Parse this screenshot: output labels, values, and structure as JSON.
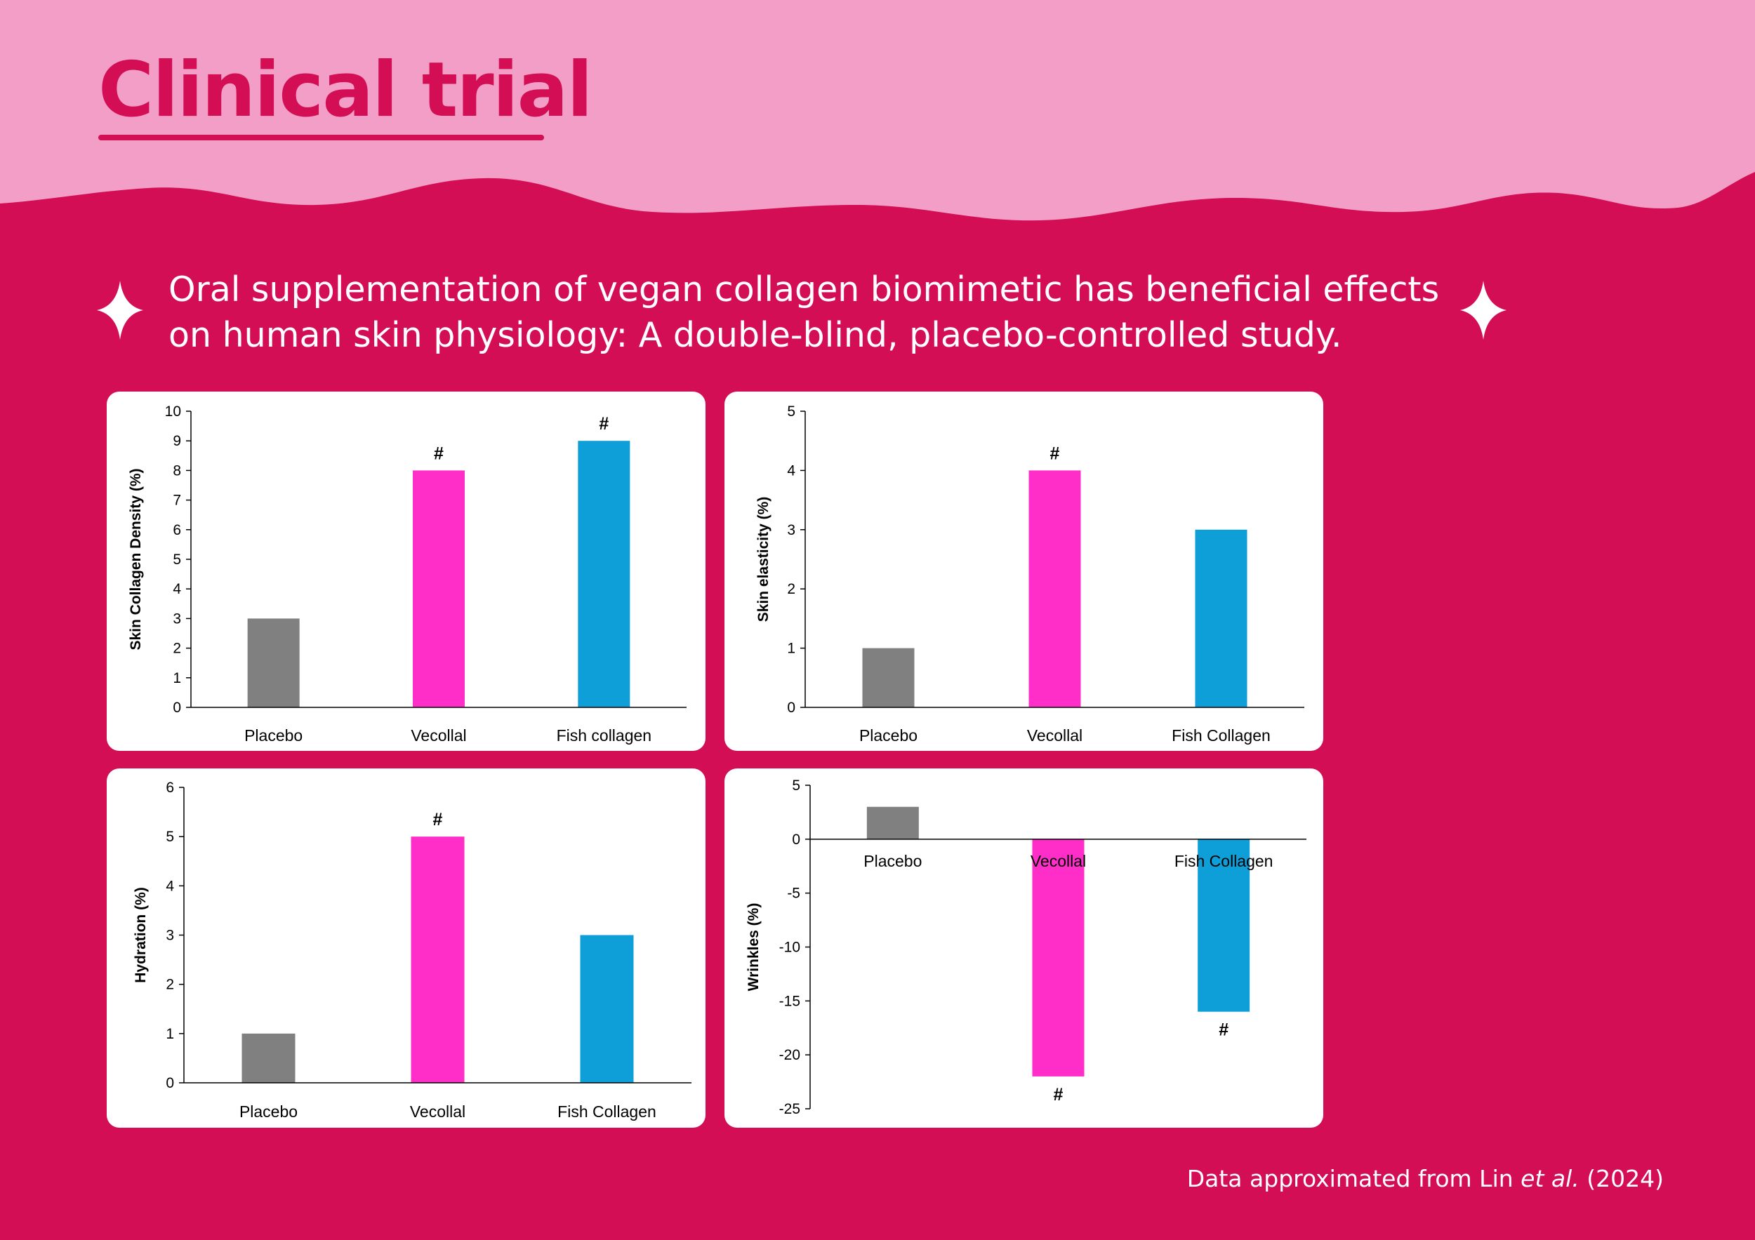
{
  "header": {
    "title": "Clinical trial"
  },
  "subtitle": {
    "line1": "Oral supplementation of vegan collagen biomimetic has beneficial effects",
    "line2": "on human skin physiology: A double-blind, placebo-controlled study."
  },
  "footnote": {
    "prefix": "Data approximated from Lin ",
    "italic": "et al.",
    "suffix": " (2024)"
  },
  "colors": {
    "background": "#d40e55",
    "header_band": "#f29ec6",
    "placebo": "#808080",
    "vecollal": "#ff2ec8",
    "fish_collagen": "#0f9fd8"
  },
  "chart_data": [
    {
      "id": "collagen",
      "type": "bar",
      "ylabel": "Skin Collagen Density (%)",
      "categories": [
        "Placebo",
        "Vecollal",
        "Fish collagen"
      ],
      "values": [
        3,
        8,
        9
      ],
      "significance": [
        "",
        "#",
        "#"
      ],
      "ylim": [
        0,
        10
      ],
      "yticks": [
        0,
        1,
        2,
        3,
        4,
        5,
        6,
        7,
        8,
        9,
        10
      ]
    },
    {
      "id": "elasticity",
      "type": "bar",
      "ylabel": "Skin elasticity (%)",
      "categories": [
        "Placebo",
        "Vecollal",
        "Fish Collagen"
      ],
      "values": [
        1,
        4,
        3
      ],
      "significance": [
        "",
        "#",
        ""
      ],
      "ylim": [
        0,
        5
      ],
      "yticks": [
        0,
        1,
        2,
        3,
        4,
        5
      ]
    },
    {
      "id": "hydration",
      "type": "bar",
      "ylabel": "Hydration (%)",
      "categories": [
        "Placebo",
        "Vecollal",
        "Fish Collagen"
      ],
      "values": [
        1,
        5,
        3
      ],
      "significance": [
        "",
        "#",
        ""
      ],
      "ylim": [
        0,
        6
      ],
      "yticks": [
        0,
        1,
        2,
        3,
        4,
        5,
        6
      ]
    },
    {
      "id": "wrinkles",
      "type": "bar",
      "ylabel": "Wrinkles (%)",
      "categories": [
        "Placebo",
        "Vecollal",
        "Fish Collagen"
      ],
      "values": [
        3,
        -22,
        -16
      ],
      "significance": [
        "",
        "#",
        "#"
      ],
      "ylim": [
        -25,
        5
      ],
      "yticks": [
        5,
        0,
        -5,
        -10,
        -15,
        -20,
        -25
      ]
    }
  ]
}
